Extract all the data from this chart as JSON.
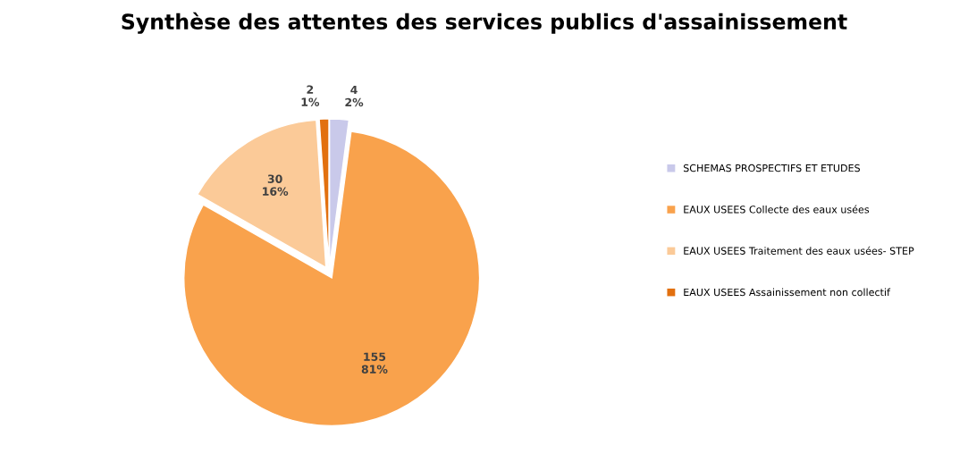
{
  "chart_data": {
    "type": "pie",
    "title": "Synthèse des attentes des services publics d'assainissement",
    "categories": [
      "SCHEMAS PROSPECTIFS ET ETUDES",
      "EAUX USEES Collecte des eaux usées",
      "EAUX USEES Traitement des eaux usées- STEP",
      "EAUX USEES Assainissement non collectif"
    ],
    "values": [
      4,
      155,
      30,
      2
    ],
    "colors": [
      "#c9c9ea",
      "#f9a24c",
      "#fbca98",
      "#e2700f"
    ],
    "value_labels": [
      "4\n2%",
      "155\n81%",
      "30\n16%",
      "2\n1%"
    ],
    "legend": "right"
  }
}
